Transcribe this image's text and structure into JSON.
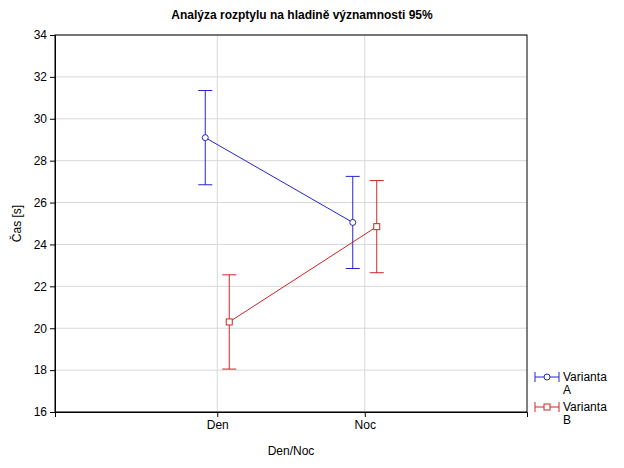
{
  "chart_data": {
    "type": "line",
    "title": "Analýza rozptylu na hladině významnosti 95%",
    "x_label": "Den/Noc",
    "y_label": "Čas [s]",
    "categories": [
      "Den",
      "Noc"
    ],
    "series": [
      {
        "name": "Varianta A",
        "color": "#2424d0",
        "marker": "circle",
        "values": [
          29.1,
          25.05
        ],
        "errors": [
          2.25,
          2.2
        ]
      },
      {
        "name": "Varianta B",
        "color": "#d02424",
        "marker": "square",
        "values": [
          20.3,
          24.85
        ],
        "errors": [
          2.25,
          2.2
        ]
      }
    ],
    "ylim": [
      16,
      34
    ],
    "yticks": [
      16,
      18,
      20,
      22,
      24,
      26,
      28,
      30,
      32,
      34
    ],
    "grid": true,
    "legend": "bottom right"
  }
}
